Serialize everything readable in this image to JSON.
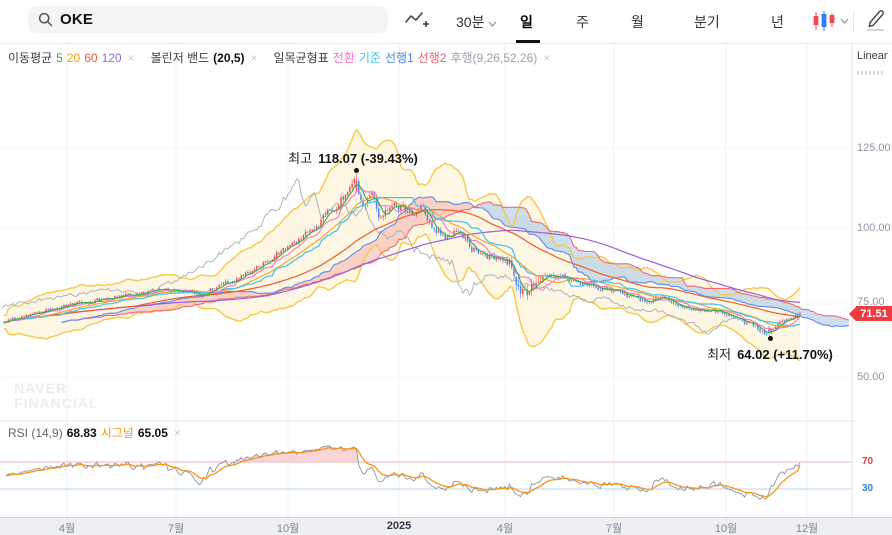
{
  "header": {
    "search_value": "OKE",
    "search_icon": "magnifier-icon",
    "chart_type_icon": "line-chart-add-icon",
    "periods": [
      {
        "label": "30분",
        "dropdown": true,
        "selected": false
      },
      {
        "label": "일",
        "dropdown": false,
        "selected": true
      },
      {
        "label": "주",
        "dropdown": false,
        "selected": false
      },
      {
        "label": "월",
        "dropdown": false,
        "selected": false
      },
      {
        "label": "분기",
        "dropdown": false,
        "selected": false
      },
      {
        "label": "년",
        "dropdown": false,
        "selected": false
      }
    ],
    "candle_style_icon": "candlestick-icon",
    "draw_icon": "pencil-icon"
  },
  "legend": {
    "groups": [
      {
        "name": "moving-average-legend",
        "tokens": [
          {
            "t": "이동평균",
            "c": "#3a4046",
            "b": false
          },
          {
            "t": "5",
            "c": "#2eae4c",
            "b": false
          },
          {
            "t": "20",
            "c": "#f6a21d",
            "b": false
          },
          {
            "t": "60",
            "c": "#f05b2b",
            "b": false
          },
          {
            "t": "120",
            "c": "#9d63d8",
            "b": false
          }
        ],
        "closable": true
      },
      {
        "name": "bollinger-legend",
        "tokens": [
          {
            "t": "볼린저 밴드",
            "c": "#3a4046",
            "b": false
          },
          {
            "t": "(20,5)",
            "c": "#111111",
            "b": true
          }
        ],
        "closable": true
      },
      {
        "name": "ichimoku-legend",
        "tokens": [
          {
            "t": "일목균형표",
            "c": "#3a4046",
            "b": false
          },
          {
            "t": "전환",
            "c": "#fb6ec2",
            "b": false
          },
          {
            "t": "기준",
            "c": "#3bbef2",
            "b": false
          },
          {
            "t": "선행1",
            "c": "#4a80f0",
            "b": false
          },
          {
            "t": "선행2",
            "c": "#f2606b",
            "b": false
          },
          {
            "t": "후행(9,26,52,26)",
            "c": "#9aa1a9",
            "b": false
          }
        ],
        "closable": true
      }
    ]
  },
  "rsi_legend": {
    "name": "rsi-legend",
    "tokens": [
      {
        "t": "RSI (14,9)",
        "c": "#5f666d",
        "b": false
      },
      {
        "t": "68.83",
        "c": "#111111",
        "b": true
      },
      {
        "t": "시그널",
        "c": "#f7941d",
        "b": false
      },
      {
        "t": "65.05",
        "c": "#111111",
        "b": true
      }
    ],
    "closable": true
  },
  "right_panel": {
    "scale_label": "Linear",
    "price_badge": "71.51",
    "y_ticks": [
      "125.00",
      "100.00",
      "75.00",
      "50.00"
    ],
    "rsi_levels": [
      {
        "label": "70",
        "color": "#e23c42"
      },
      {
        "label": "30",
        "color": "#2f80e0"
      }
    ]
  },
  "annotations": {
    "high": {
      "label": "최고",
      "value": "118.07 (-39.43%)"
    },
    "low": {
      "label": "최저",
      "value": "64.02 (+11.70%)"
    }
  },
  "watermark": {
    "line1": "NAVER",
    "line2": "FINANCIAL"
  },
  "x_axis": {
    "ticks": [
      "4월",
      "7월",
      "10월",
      "2025",
      "4월",
      "7월",
      "10월",
      "12월"
    ],
    "bold_index": 3
  },
  "chart_data": {
    "type": "candlestick",
    "symbol": "OKE",
    "interval": "일",
    "scale": "Linear",
    "y_range": [
      45,
      135
    ],
    "y_tick_values": [
      125,
      100,
      75,
      50
    ],
    "x_tick_labels": [
      "4월",
      "7월",
      "10월",
      "2025",
      "4월",
      "7월",
      "10월",
      "12월"
    ],
    "stats": {
      "high": 118.07,
      "high_change_pct": -39.43,
      "low": 64.02,
      "low_change_pct": 11.7,
      "last": 71.51
    },
    "indicators": {
      "moving_averages": [
        5,
        20,
        60,
        120
      ],
      "bollinger": {
        "period": 20,
        "mult": 5
      },
      "ichimoku": {
        "conversion": 9,
        "base": 26,
        "span": 52,
        "lagging": 26
      },
      "rsi": {
        "period": 14,
        "signal": 9,
        "value": 68.83,
        "signal_value": 65.05,
        "upper_level": 70,
        "lower_level": 30
      }
    },
    "price_anchors": [
      [
        0,
        68.5,
        1.2
      ],
      [
        30,
        71,
        1.2
      ],
      [
        67,
        74,
        1.1
      ],
      [
        110,
        76.5,
        1.3
      ],
      [
        150,
        78.5,
        1.2
      ],
      [
        176,
        79.5,
        1.1
      ],
      [
        205,
        78,
        1.5
      ],
      [
        240,
        84,
        1.6
      ],
      [
        270,
        90,
        1.8
      ],
      [
        288,
        93,
        1.8
      ],
      [
        310,
        99,
        2.2
      ],
      [
        330,
        106,
        2.6
      ],
      [
        348,
        112,
        3.0
      ],
      [
        356,
        115,
        3.2
      ],
      [
        364,
        107,
        3.4
      ],
      [
        372,
        110,
        3.0
      ],
      [
        382,
        103,
        3.0
      ],
      [
        392,
        108,
        2.8
      ],
      [
        402,
        106.5,
        2.6
      ],
      [
        412,
        103.5,
        2.6
      ],
      [
        422,
        107,
        2.4
      ],
      [
        432,
        100,
        2.6
      ],
      [
        445,
        96.5,
        2.4
      ],
      [
        458,
        99,
        2.2
      ],
      [
        472,
        93.5,
        2.4
      ],
      [
        488,
        91,
        2.2
      ],
      [
        502,
        89.5,
        2.0
      ],
      [
        512,
        88,
        3.5
      ],
      [
        518,
        80,
        5.5
      ],
      [
        524,
        78.5,
        6.0
      ],
      [
        532,
        83,
        5.0
      ],
      [
        545,
        86,
        3.0
      ],
      [
        558,
        84,
        2.2
      ],
      [
        572,
        82.5,
        1.8
      ],
      [
        586,
        81,
        1.6
      ],
      [
        600,
        80,
        1.5
      ],
      [
        614,
        79,
        1.4
      ],
      [
        630,
        77,
        1.4
      ],
      [
        645,
        75.5,
        1.5
      ],
      [
        660,
        77.5,
        1.6
      ],
      [
        675,
        74.5,
        1.5
      ],
      [
        690,
        73,
        1.3
      ],
      [
        705,
        72.5,
        1.2
      ],
      [
        726,
        71.8,
        1.2
      ],
      [
        740,
        69.5,
        1.4
      ],
      [
        755,
        67,
        1.5
      ],
      [
        768,
        64.8,
        1.6
      ],
      [
        778,
        67.5,
        1.5
      ],
      [
        790,
        69.8,
        1.3
      ],
      [
        800,
        71.5,
        1.1
      ]
    ],
    "colors": {
      "up": "#ef4b56",
      "down": "#4b87f2",
      "ma5": "#2fae4d",
      "ma20": "#f6a323",
      "ma60": "#f05b2b",
      "ma120": "#9b5fd6",
      "conversion": "#fb74c4",
      "base": "#3fc1f2",
      "span1": "#5b8df0",
      "span2": "#f26a71",
      "lagging": "#a7adb5",
      "bollinger_line": "#f7c948",
      "bollinger_fill": "#fbf3d9",
      "cloud_bull": "#f4b3ab",
      "cloud_bear": "#accae8",
      "rsi": "#8f959d",
      "rsi_signal": "#f7941d",
      "level70": "#f2b6ba",
      "level30": "#b9d6f2",
      "badge": "#ee3b40"
    }
  }
}
